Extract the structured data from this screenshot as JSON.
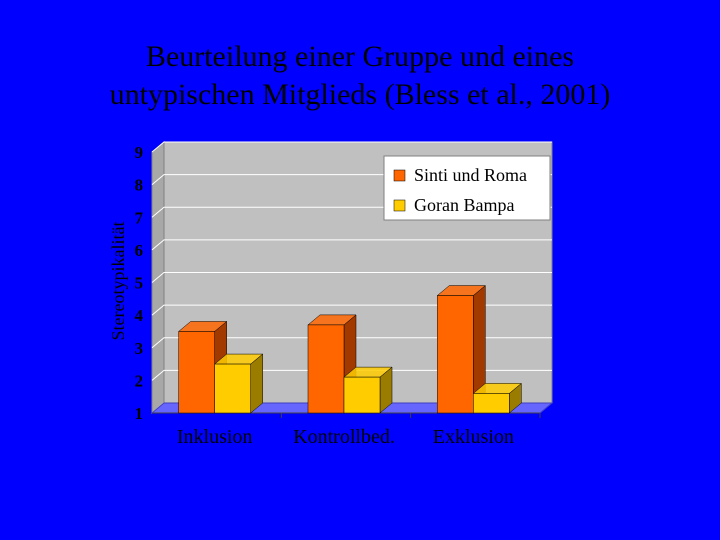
{
  "slide": {
    "title_line1": "Beurteilung einer Gruppe und eines",
    "title_line2": "untypischen Mitglieds (Bless et al., 2001)"
  },
  "chart_data": {
    "type": "bar",
    "style": "3d-clustered",
    "title": "",
    "ylabel": "Stereotypikalität",
    "xlabel": "",
    "ylim": [
      1,
      9
    ],
    "yticks": [
      1,
      2,
      3,
      4,
      5,
      6,
      7,
      8,
      9
    ],
    "grid": true,
    "legend_position": "top-right",
    "categories": [
      "Inklusion",
      "Kontrollbed.",
      "Exklusion"
    ],
    "series": [
      {
        "name": "Sinti und Roma",
        "values": [
          3.5,
          3.7,
          4.6
        ],
        "color": "#ff6600",
        "shade": "#a23a00"
      },
      {
        "name": "Goran Bampa",
        "values": [
          2.5,
          2.1,
          1.6
        ],
        "color": "#ffcc00",
        "shade": "#9a7c00"
      }
    ],
    "colors": {
      "slide_background": "#0000ff",
      "plot_background": "#c0c0c0",
      "floor": "#6666ff",
      "gridline": "#ffffff",
      "text": "#000000"
    }
  }
}
